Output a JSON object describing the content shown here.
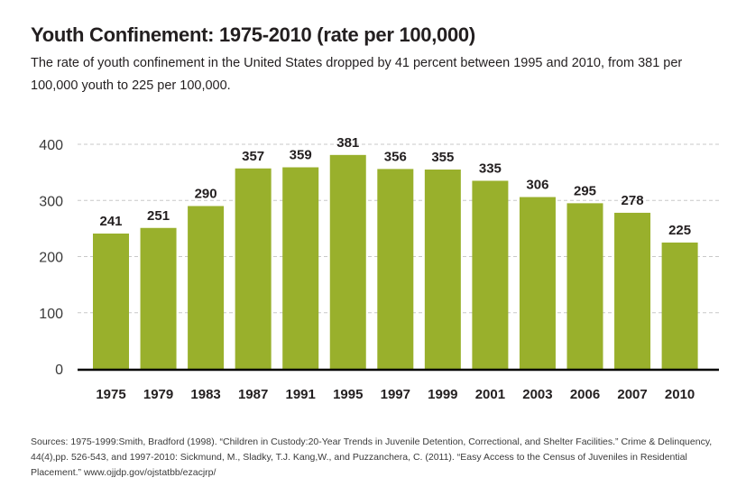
{
  "chart_data": {
    "type": "bar",
    "title": "Youth Confinement: 1975-2010 (rate per 100,000)",
    "subtitle": "The rate of youth confinement in the United States dropped by 41 percent between 1995 and 2010, from 381 per 100,000 youth to 225 per 100,000.",
    "categories": [
      "1975",
      "1979",
      "1983",
      "1987",
      "1991",
      "1995",
      "1997",
      "1999",
      "2001",
      "2003",
      "2006",
      "2007",
      "2010"
    ],
    "values": [
      241,
      251,
      290,
      357,
      359,
      381,
      356,
      355,
      335,
      306,
      295,
      278,
      225
    ],
    "xlabel": "",
    "ylabel": "",
    "ylim": [
      0,
      400
    ],
    "yticks": [
      0,
      100,
      200,
      300,
      400
    ],
    "grid": true,
    "bar_color": "#99b02c",
    "data_labels": true
  },
  "sources": "Sources: 1975-1999:Smith, Bradford (1998). “Children in Custody:20-Year Trends in Juvenile Detention, Correctional, and Shelter Facilities.” Crime & Delinquency, 44(4),pp. 526-543, and 1997-2010: Sickmund, M., Sladky, T.J. Kang,W., and Puzzanchera, C. (2011). “Easy Access to the Census of Juveniles in Residential Placement.” www.ojjdp.gov/ojstatbb/ezacjrp/"
}
